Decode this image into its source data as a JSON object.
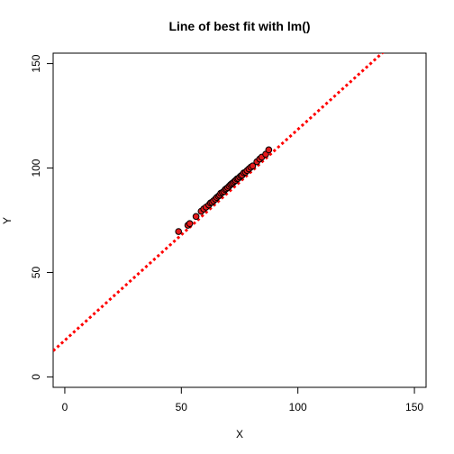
{
  "chart_data": {
    "type": "scatter",
    "title": "Line of best fit with lm()",
    "xlabel": "X",
    "ylabel": "Y",
    "xlim": [
      -5,
      155
    ],
    "ylim": [
      -5,
      155
    ],
    "xticks": [
      0,
      50,
      100,
      150
    ],
    "yticks": [
      0,
      50,
      100,
      150
    ],
    "grid": false,
    "point_color": "#e41a1c",
    "point_edge_color": "#000000",
    "fit_line": {
      "intercept": 17.5,
      "slope": 1.01,
      "color": "#ff0000",
      "style": "dotted"
    },
    "points": {
      "x": [
        48.8,
        52.8,
        53.6,
        56.3,
        58.5,
        59.6,
        60.6,
        61.8,
        62.5,
        63.1,
        63.8,
        64.6,
        65.2,
        65.9,
        66.4,
        66.9,
        67.6,
        68.2,
        68.8,
        69.3,
        69.9,
        70.5,
        71.1,
        71.6,
        72.2,
        72.8,
        73.3,
        73.9,
        74.4,
        75.0,
        75.6,
        76.1,
        76.8,
        77.5,
        78.2,
        79.0,
        79.8,
        80.6,
        82.4,
        83.6,
        84.5,
        86.2,
        87.5
      ],
      "y": [
        69.6,
        72.6,
        73.4,
        76.8,
        79.3,
        80.4,
        81.3,
        82.3,
        83.3,
        83.6,
        84.3,
        85.1,
        85.9,
        86.5,
        87.0,
        87.9,
        88.3,
        88.8,
        89.7,
        90.1,
        90.6,
        91.3,
        92.0,
        92.5,
        93.0,
        93.6,
        94.1,
        94.8,
        95.0,
        95.7,
        96.3,
        96.6,
        97.7,
        98.0,
        98.8,
        99.6,
        100.4,
        101.0,
        103.0,
        104.3,
        105.2,
        106.6,
        108.7
      ]
    }
  }
}
